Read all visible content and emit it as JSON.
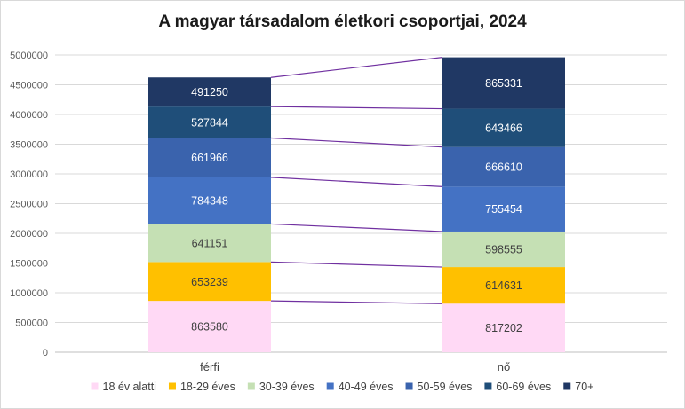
{
  "chart_data": {
    "type": "bar",
    "stacked": true,
    "title": "A magyar társadalom életkori csoportjai, 2024",
    "categories": [
      "férfi",
      "nő"
    ],
    "series": [
      {
        "name": "18 év alatti",
        "values": [
          863580,
          817202
        ],
        "color": "#ffd9f5"
      },
      {
        "name": "18-29 éves",
        "values": [
          653239,
          614631
        ],
        "color": "#ffc000"
      },
      {
        "name": "30-39 éves",
        "values": [
          641151,
          598555
        ],
        "color": "#c5e0b4"
      },
      {
        "name": "40-49 éves",
        "values": [
          784348,
          755454
        ],
        "color": "#4472c4"
      },
      {
        "name": "50-59 éves",
        "values": [
          661966,
          666610
        ],
        "color": "#3a63ad"
      },
      {
        "name": "60-69 éves",
        "values": [
          527844,
          643466
        ],
        "color": "#1f4e79"
      },
      {
        "name": "70+",
        "values": [
          491250,
          865331
        ],
        "color": "#203864"
      }
    ],
    "ylim": [
      0,
      5000000
    ],
    "yticks": [
      0,
      500000,
      1000000,
      1500000,
      2000000,
      2500000,
      3000000,
      3500000,
      4000000,
      4500000,
      5000000
    ],
    "grid": true,
    "legend_position": "bottom",
    "series_lines": true,
    "series_line_color": "#7030a0"
  }
}
